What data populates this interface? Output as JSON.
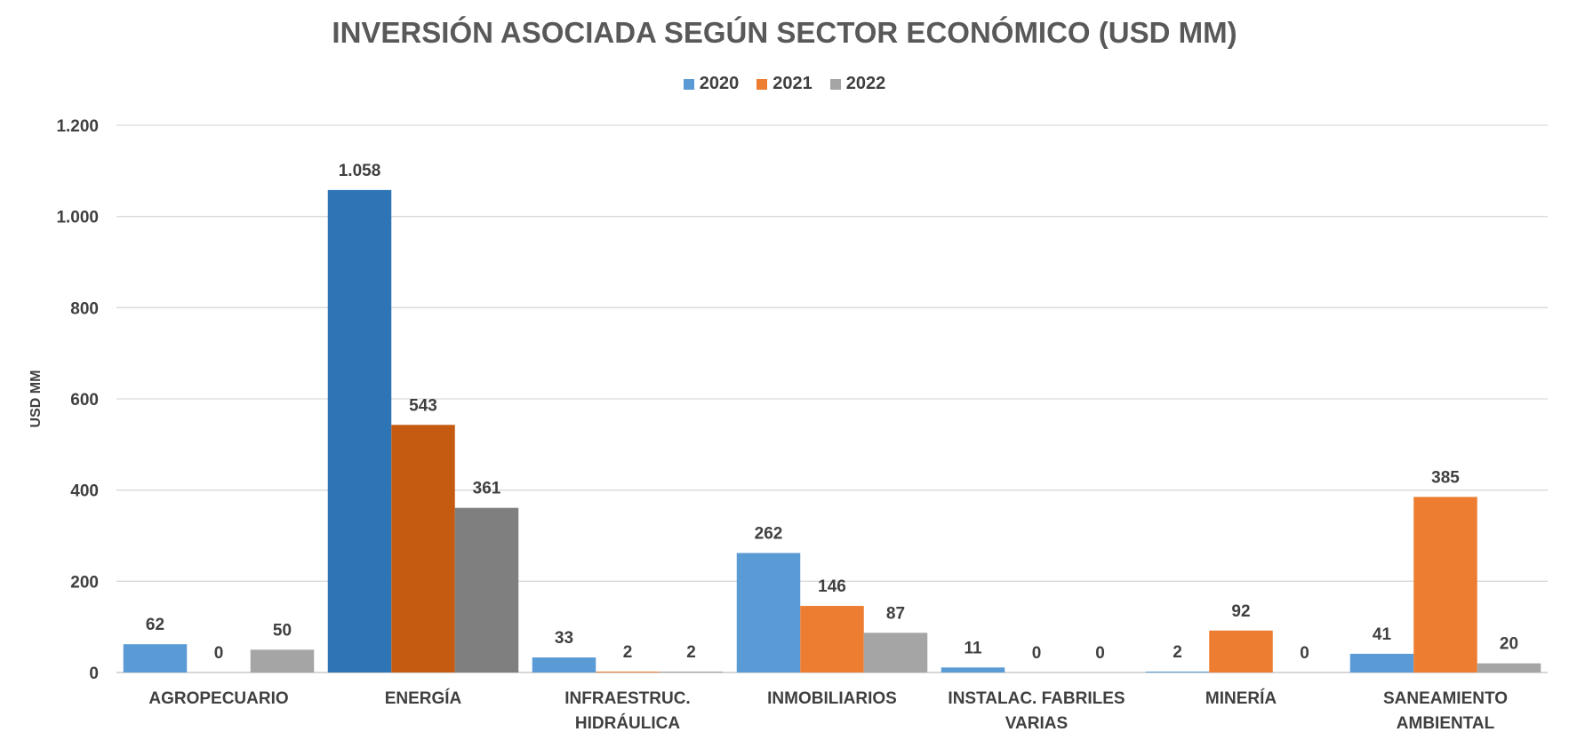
{
  "chart_data": {
    "type": "bar",
    "title": "INVERSIÓN ASOCIADA SEGÚN SECTOR ECONÓMICO (USD MM)",
    "xlabel": "",
    "ylabel": "USD MM",
    "ylim": [
      0,
      1200
    ],
    "yticks": [
      0,
      200,
      400,
      600,
      800,
      1000,
      1200
    ],
    "ytick_labels": [
      "0",
      "200",
      "400",
      "600",
      "800",
      "1.000",
      "1.200"
    ],
    "legend_position": "top-center",
    "grid": true,
    "categories": [
      [
        "AGROPECUARIO"
      ],
      [
        "ENERGÍA"
      ],
      [
        "INFRAESTRUC.",
        "HIDRÁULICA"
      ],
      [
        "INMOBILIARIOS"
      ],
      [
        "INSTALAC. FABRILES",
        "VARIAS"
      ],
      [
        "MINERÍA"
      ],
      [
        "SANEAMIENTO",
        "AMBIENTAL"
      ]
    ],
    "series": [
      {
        "name": "2020",
        "color": "#5B9BD5",
        "values": [
          62,
          1058,
          33,
          262,
          11,
          2,
          41
        ],
        "labels": [
          "62",
          "1.058",
          "33",
          "262",
          "11",
          "2",
          "41"
        ]
      },
      {
        "name": "2021",
        "color": "#ED7D31",
        "values": [
          0,
          543,
          2,
          146,
          0,
          92,
          385
        ],
        "labels": [
          "0",
          "543",
          "2",
          "146",
          "0",
          "92",
          "385"
        ]
      },
      {
        "name": "2022",
        "color": "#A5A5A5",
        "values": [
          50,
          361,
          2,
          87,
          0,
          0,
          20
        ],
        "labels": [
          "50",
          "361",
          "2",
          "87",
          "0",
          "0",
          "20"
        ]
      }
    ],
    "highlight": {
      "category_index": 1,
      "colors": [
        "#2E75B6",
        "#C55A11",
        "#7F7F7F"
      ]
    }
  }
}
